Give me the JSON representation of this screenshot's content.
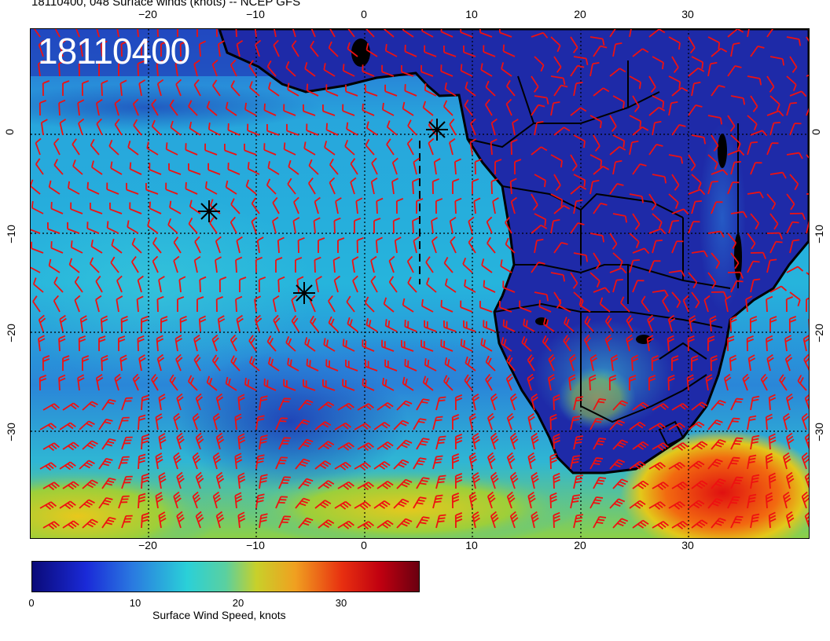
{
  "title": "18110400, 048 Surface winds (knots) -- NCEP GFS",
  "stamp": "18110400",
  "lon_ticks_top": [
    "−20",
    "−10",
    "0",
    "10",
    "20",
    "30"
  ],
  "lon_ticks_bottom": [
    "−20",
    "−10",
    "0",
    "10",
    "20",
    "30"
  ],
  "lat_ticks_left": [
    "0",
    "−10",
    "−20",
    "−30"
  ],
  "lat_ticks_right": [
    "0",
    "−10",
    "−20",
    "−30"
  ],
  "colorbar": {
    "label": "Surface Wind Speed, knots",
    "ticks": [
      "0",
      "10",
      "20",
      "30"
    ]
  },
  "colors": {
    "barb": "#ee1111",
    "land_low": "#1a1fa8",
    "ocean": "#22a8d8",
    "strong": "#e01010"
  }
}
